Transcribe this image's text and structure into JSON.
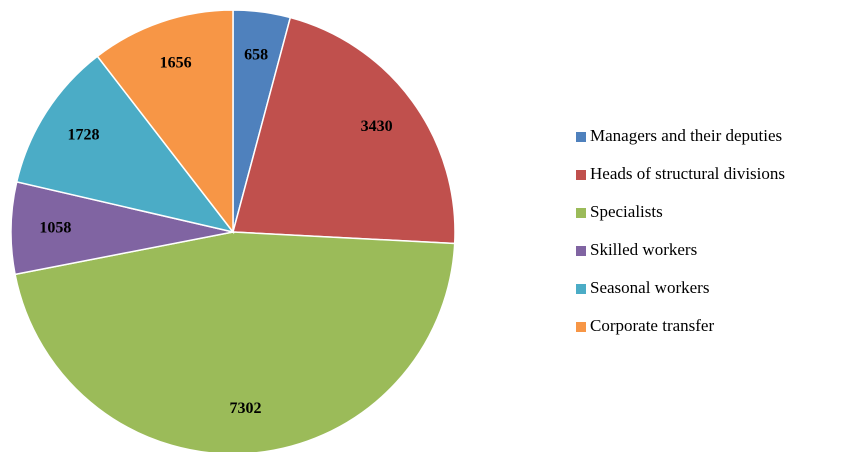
{
  "chart_data": {
    "type": "pie",
    "categories": [
      "Managers and their deputies",
      "Heads of structural divisions",
      "Specialists",
      "Skilled workers",
      "Seasonal workers",
      "Corporate transfer"
    ],
    "values": [
      658,
      3430,
      7302,
      1058,
      1728,
      1656
    ],
    "colors": [
      "#4f81bd",
      "#c0504d",
      "#9bbb59",
      "#8064a2",
      "#4bacc6",
      "#f79646"
    ],
    "legend": "right"
  }
}
